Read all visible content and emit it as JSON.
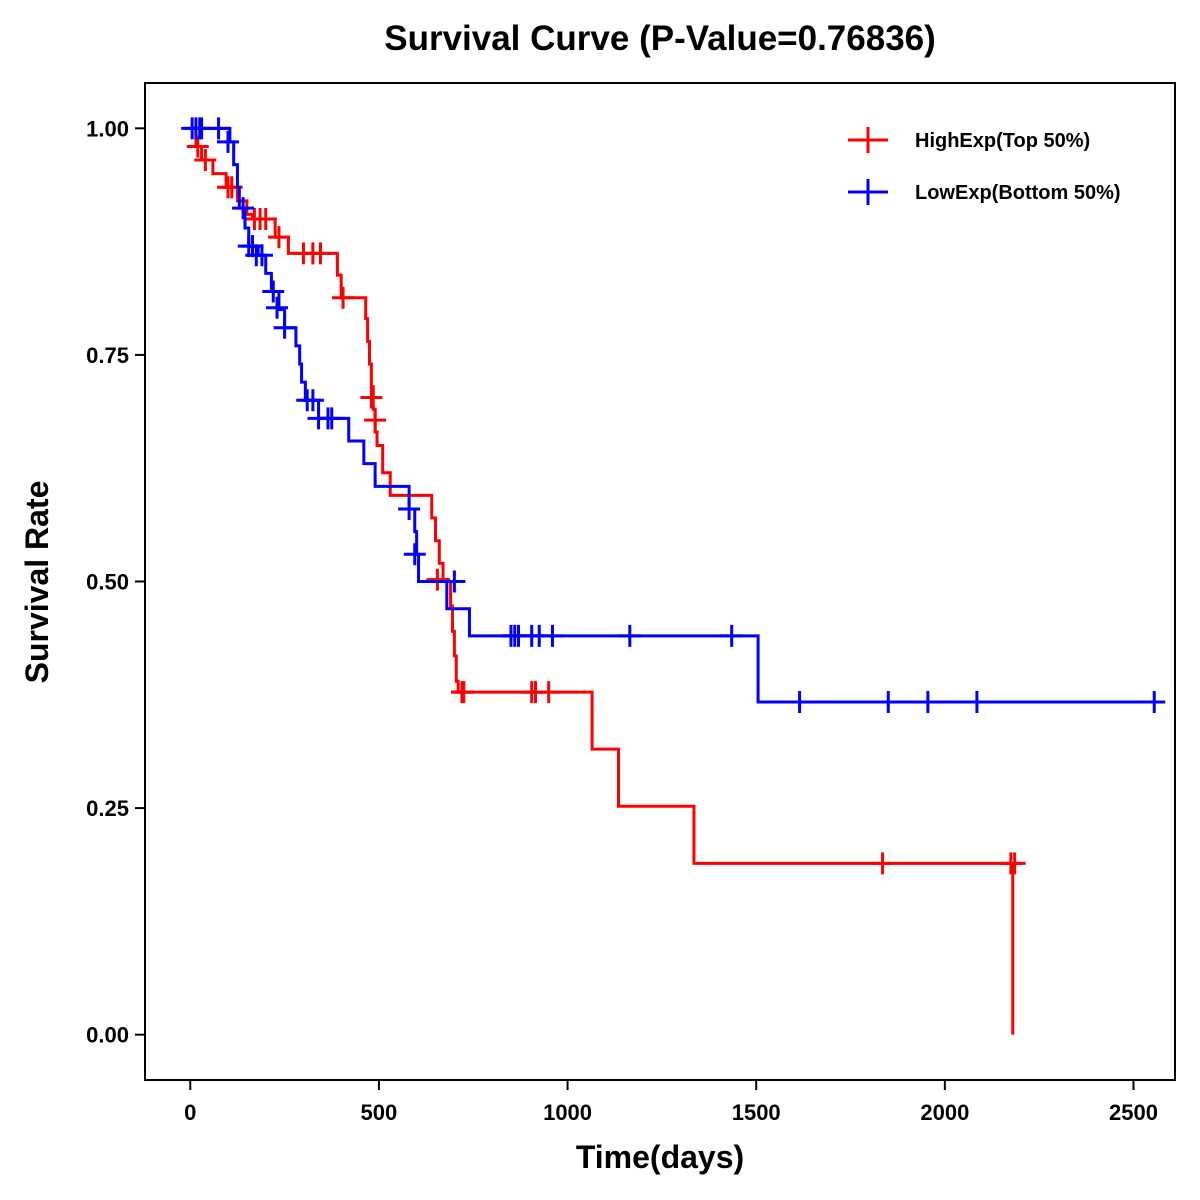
{
  "chart_data": {
    "type": "line",
    "subtype": "kaplan-meier step",
    "title": "Survival Curve (P-Value=0.76836)",
    "xlabel": "Time(days)",
    "ylabel": "Survival Rate",
    "xlim": [
      -120,
      2610
    ],
    "ylim": [
      -0.05,
      1.05
    ],
    "xticks": [
      0,
      500,
      1000,
      1500,
      2000,
      2500
    ],
    "xtick_labels": [
      "0",
      "500",
      "1000",
      "1500",
      "2000",
      "2500"
    ],
    "yticks": [
      0,
      0.25,
      0.5,
      0.75,
      1.0
    ],
    "ytick_labels": [
      "0.00",
      "0.25",
      "0.50",
      "0.75",
      "1.00"
    ],
    "grid": false,
    "legend_position": "top-right",
    "series": [
      {
        "name": "HighExp(Top 50%)",
        "color": "#ff0000",
        "steps": [
          [
            0,
            1.0
          ],
          [
            15,
            0.98
          ],
          [
            30,
            0.965
          ],
          [
            60,
            0.95
          ],
          [
            95,
            0.935
          ],
          [
            125,
            0.92
          ],
          [
            150,
            0.905
          ],
          [
            165,
            0.9
          ],
          [
            225,
            0.88
          ],
          [
            260,
            0.862
          ],
          [
            360,
            0.862
          ],
          [
            390,
            0.838
          ],
          [
            400,
            0.813
          ],
          [
            460,
            0.813
          ],
          [
            465,
            0.79
          ],
          [
            470,
            0.765
          ],
          [
            475,
            0.74
          ],
          [
            480,
            0.715
          ],
          [
            485,
            0.69
          ],
          [
            490,
            0.665
          ],
          [
            495,
            0.65
          ],
          [
            510,
            0.62
          ],
          [
            530,
            0.595
          ],
          [
            635,
            0.595
          ],
          [
            640,
            0.57
          ],
          [
            650,
            0.545
          ],
          [
            660,
            0.52
          ],
          [
            670,
            0.502
          ],
          [
            685,
            0.5
          ],
          [
            690,
            0.473
          ],
          [
            695,
            0.445
          ],
          [
            700,
            0.418
          ],
          [
            705,
            0.39
          ],
          [
            710,
            0.378
          ],
          [
            1060,
            0.378
          ],
          [
            1065,
            0.315
          ],
          [
            1130,
            0.315
          ],
          [
            1135,
            0.252
          ],
          [
            1330,
            0.252
          ],
          [
            1335,
            0.189
          ],
          [
            2175,
            0.189
          ],
          [
            2180,
            0.0
          ]
        ],
        "end": 2180,
        "censored": [
          [
            20,
            0.98
          ],
          [
            40,
            0.965
          ],
          [
            100,
            0.935
          ],
          [
            110,
            0.935
          ],
          [
            170,
            0.9
          ],
          [
            185,
            0.9
          ],
          [
            200,
            0.9
          ],
          [
            235,
            0.88
          ],
          [
            300,
            0.862
          ],
          [
            325,
            0.862
          ],
          [
            345,
            0.862
          ],
          [
            405,
            0.813
          ],
          [
            480,
            0.703
          ],
          [
            490,
            0.678
          ],
          [
            655,
            0.502
          ],
          [
            720,
            0.378
          ],
          [
            725,
            0.378
          ],
          [
            905,
            0.378
          ],
          [
            915,
            0.378
          ],
          [
            950,
            0.378
          ],
          [
            1835,
            0.189
          ],
          [
            2175,
            0.189
          ],
          [
            2185,
            0.189
          ]
        ]
      },
      {
        "name": "LowExp(Bottom 50%)",
        "color": "#0000ff",
        "steps": [
          [
            0,
            1.0
          ],
          [
            105,
            0.985
          ],
          [
            115,
            0.96
          ],
          [
            125,
            0.935
          ],
          [
            130,
            0.912
          ],
          [
            145,
            0.89
          ],
          [
            155,
            0.87
          ],
          [
            180,
            0.86
          ],
          [
            200,
            0.84
          ],
          [
            215,
            0.82
          ],
          [
            235,
            0.8
          ],
          [
            250,
            0.78
          ],
          [
            280,
            0.76
          ],
          [
            290,
            0.74
          ],
          [
            295,
            0.72
          ],
          [
            305,
            0.7
          ],
          [
            340,
            0.68
          ],
          [
            420,
            0.655
          ],
          [
            460,
            0.63
          ],
          [
            490,
            0.605
          ],
          [
            570,
            0.605
          ],
          [
            580,
            0.58
          ],
          [
            595,
            0.555
          ],
          [
            600,
            0.53
          ],
          [
            605,
            0.5
          ],
          [
            675,
            0.5
          ],
          [
            680,
            0.47
          ],
          [
            740,
            0.44
          ],
          [
            1500,
            0.44
          ],
          [
            1505,
            0.367
          ],
          [
            2555,
            0.367
          ]
        ],
        "end": 2555,
        "censored": [
          [
            5,
            1.0
          ],
          [
            15,
            1.0
          ],
          [
            25,
            1.0
          ],
          [
            30,
            1.0
          ],
          [
            75,
            1.0
          ],
          [
            100,
            0.985
          ],
          [
            140,
            0.912
          ],
          [
            155,
            0.87
          ],
          [
            165,
            0.87
          ],
          [
            175,
            0.86
          ],
          [
            190,
            0.86
          ],
          [
            220,
            0.82
          ],
          [
            230,
            0.802
          ],
          [
            250,
            0.78
          ],
          [
            310,
            0.7
          ],
          [
            325,
            0.7
          ],
          [
            340,
            0.68
          ],
          [
            365,
            0.68
          ],
          [
            375,
            0.68
          ],
          [
            580,
            0.58
          ],
          [
            595,
            0.53
          ],
          [
            700,
            0.5
          ],
          [
            850,
            0.44
          ],
          [
            860,
            0.44
          ],
          [
            870,
            0.44
          ],
          [
            905,
            0.44
          ],
          [
            925,
            0.44
          ],
          [
            960,
            0.44
          ],
          [
            1165,
            0.44
          ],
          [
            1435,
            0.44
          ],
          [
            1615,
            0.367
          ],
          [
            1850,
            0.367
          ],
          [
            1955,
            0.367
          ],
          [
            2085,
            0.367
          ],
          [
            2555,
            0.367
          ]
        ]
      }
    ]
  }
}
